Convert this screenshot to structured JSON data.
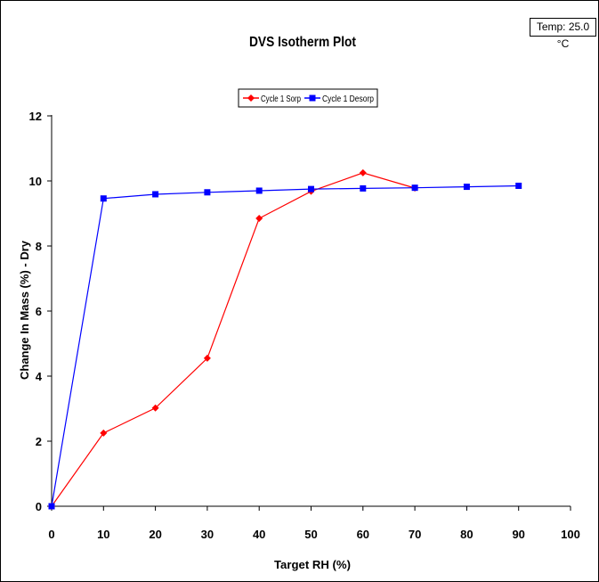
{
  "chart_data": {
    "type": "line",
    "title": "DVS Isotherm Plot",
    "annotation": "Temp:  25.0 °C",
    "xlabel": "Target RH (%)",
    "ylabel": "Change In Mass (%) - Dry",
    "xlim": [
      0,
      100
    ],
    "ylim": [
      0,
      12
    ],
    "xticks": [
      "0",
      "10",
      "20",
      "30",
      "40",
      "50",
      "60",
      "70",
      "80",
      "90",
      "100"
    ],
    "yticks": [
      "0",
      "2",
      "4",
      "6",
      "8",
      "10",
      "12"
    ],
    "grid": false,
    "legend_position": "top-center",
    "series": [
      {
        "name": "Cycle 1 Sorp",
        "color": "#ff0000",
        "marker": "diamond",
        "x": [
          0,
          10,
          20,
          30,
          40,
          50,
          60,
          70
        ],
        "y": [
          0.0,
          2.25,
          3.02,
          4.55,
          8.85,
          9.68,
          10.25,
          9.78
        ]
      },
      {
        "name": "Cycle 1 Desorp",
        "color": "#0000ff",
        "marker": "square",
        "x": [
          0,
          10,
          20,
          30,
          40,
          50,
          60,
          70,
          80,
          90
        ],
        "y": [
          0.0,
          9.46,
          9.59,
          9.65,
          9.7,
          9.75,
          9.77,
          9.79,
          9.82,
          9.85
        ]
      }
    ]
  }
}
